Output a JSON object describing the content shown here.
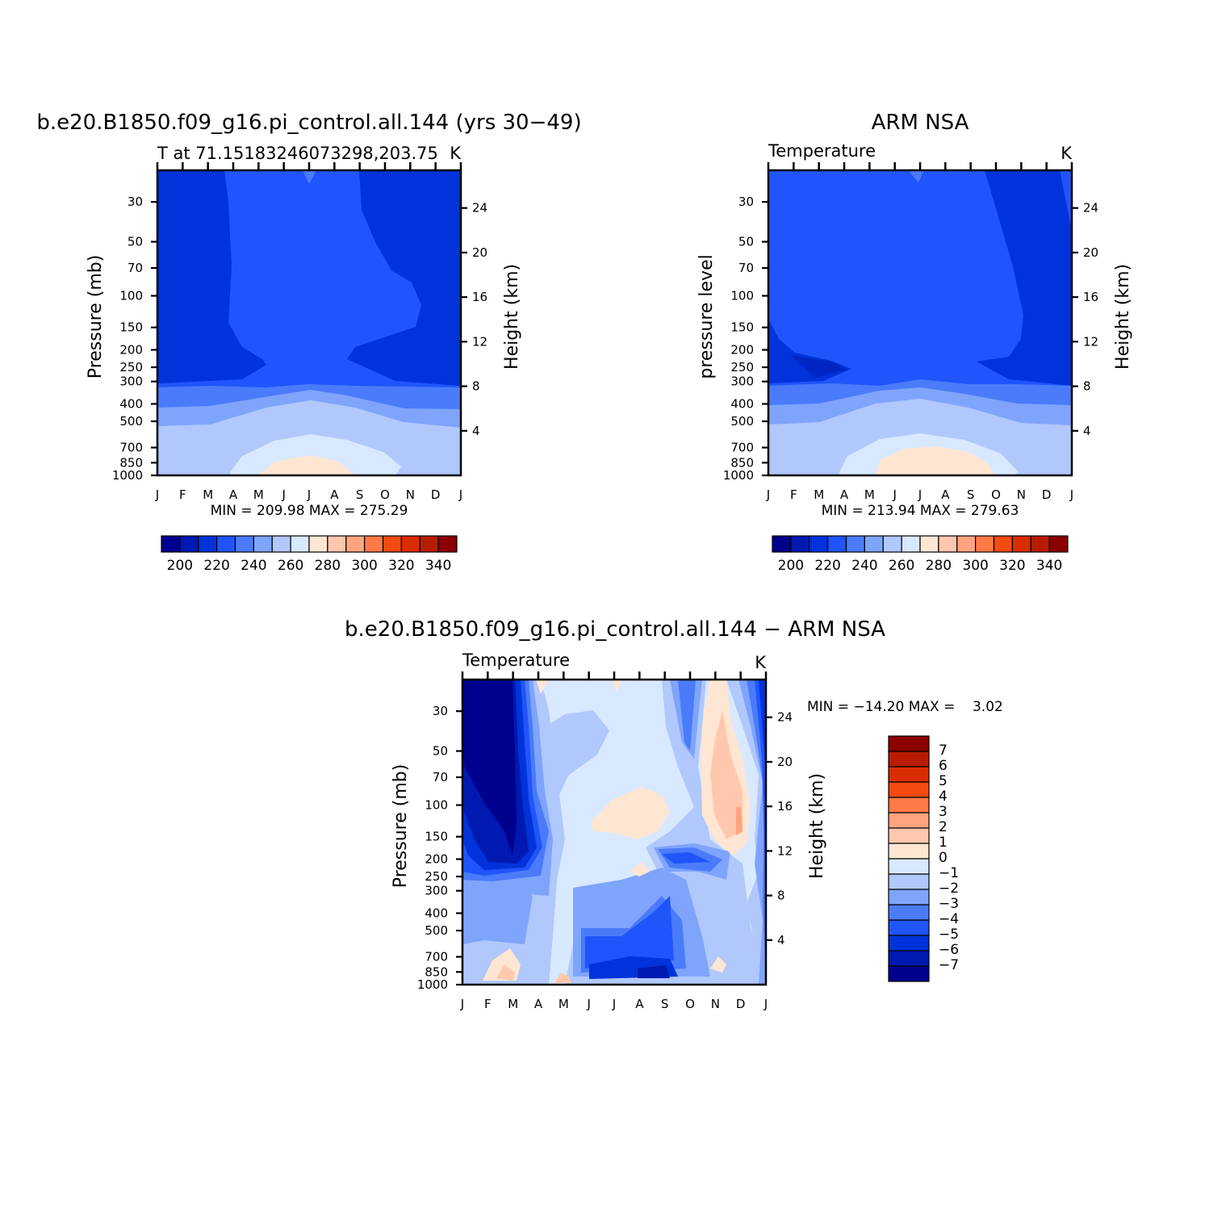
{
  "chart_data": [
    {
      "type": "heatmap",
      "title": "b.e20.B1850.f09_g16.pi_control.all.144 (yrs 30−49)",
      "subtitle_left": "T at 71.15183246073298,203.75",
      "subtitle_right": "K",
      "xlabel": "",
      "ylabel": "Pressure (mb)",
      "ylabel_right": "Height (km)",
      "x_ticks": [
        "J",
        "F",
        "M",
        "A",
        "M",
        "J",
        "J",
        "A",
        "S",
        "O",
        "N",
        "D",
        "J"
      ],
      "y_ticks": [
        30,
        50,
        70,
        100,
        150,
        200,
        250,
        300,
        400,
        500,
        700,
        850,
        1000
      ],
      "y_right_ticks": [
        24,
        20,
        16,
        12,
        8,
        4
      ],
      "ylim": [
        1000,
        20
      ],
      "y_scale": "log",
      "stats": "MIN = 209.98 MAX = 275.29",
      "min": 209.98,
      "max": 275.29,
      "colorbar_ticks": [
        "200",
        "220",
        "240",
        "260",
        "280",
        "300",
        "320",
        "340"
      ]
    },
    {
      "type": "heatmap",
      "title": "ARM NSA",
      "subtitle_left": "Temperature",
      "subtitle_right": "K",
      "xlabel": "",
      "ylabel": "pressure level",
      "ylabel_right": "Height (km)",
      "x_ticks": [
        "J",
        "F",
        "M",
        "A",
        "M",
        "J",
        "J",
        "A",
        "S",
        "O",
        "N",
        "D",
        "J"
      ],
      "y_ticks": [
        30,
        50,
        70,
        100,
        150,
        200,
        250,
        300,
        400,
        500,
        700,
        850,
        1000
      ],
      "y_right_ticks": [
        24,
        20,
        16,
        12,
        8,
        4
      ],
      "ylim": [
        1000,
        20
      ],
      "y_scale": "log",
      "stats": "MIN = 213.94 MAX = 279.63",
      "min": 213.94,
      "max": 279.63,
      "colorbar_ticks": [
        "200",
        "220",
        "240",
        "260",
        "280",
        "300",
        "320",
        "340"
      ]
    },
    {
      "type": "heatmap",
      "title": "b.e20.B1850.f09_g16.pi_control.all.144 − ARM NSA",
      "subtitle_left": "Temperature",
      "subtitle_right": "K",
      "xlabel": "",
      "ylabel": "Pressure (mb)",
      "ylabel_right": "Height (km)",
      "x_ticks": [
        "J",
        "F",
        "M",
        "A",
        "M",
        "J",
        "J",
        "A",
        "S",
        "O",
        "N",
        "D",
        "J"
      ],
      "y_ticks": [
        30,
        50,
        70,
        100,
        150,
        200,
        250,
        300,
        400,
        500,
        700,
        850,
        1000
      ],
      "y_right_ticks": [
        24,
        20,
        16,
        12,
        8,
        4
      ],
      "ylim": [
        1000,
        20
      ],
      "y_scale": "log",
      "stats": "MIN = −14.20 MAX =    3.02",
      "min": -14.2,
      "max": 3.02,
      "colorbar_ticks": [
        "7",
        "6",
        "5",
        "4",
        "3",
        "2",
        "1",
        "0",
        "−1",
        "−2",
        "−3",
        "−4",
        "−5",
        "−6",
        "−7"
      ]
    }
  ],
  "colors": {
    "temp_scale": [
      "#00008f",
      "#0019b0",
      "#0033d9",
      "#1f55fa",
      "#4a7bfa",
      "#7fa4fc",
      "#b0c8fc",
      "#d8e8ff",
      "#ffe6d2",
      "#ffc8ae",
      "#ffa47e",
      "#ff7a47",
      "#f54a12",
      "#d92d00",
      "#b81c00",
      "#8b0000"
    ],
    "diff_scale": [
      "#00008f",
      "#0019b0",
      "#0033d9",
      "#1f55fa",
      "#4a7bfa",
      "#7fa4fc",
      "#b0c8fc",
      "#d8e8ff",
      "#ffe6d2",
      "#ffc8ae",
      "#ffa47e",
      "#ff7a47",
      "#f54a12",
      "#d92d00",
      "#b81c00",
      "#8b0000"
    ]
  }
}
